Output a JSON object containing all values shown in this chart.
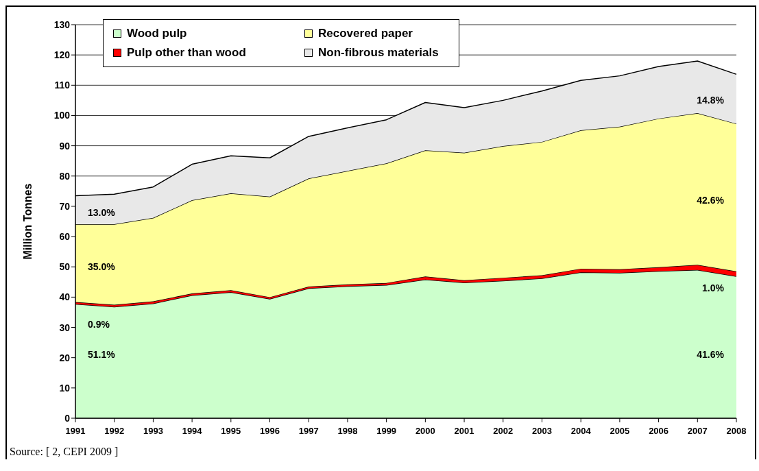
{
  "chart_data": {
    "type": "area",
    "stacked": true,
    "ylabel": "Million Tonnes",
    "categories": [
      "1991",
      "1992",
      "1993",
      "1994",
      "1995",
      "1996",
      "1997",
      "1998",
      "1999",
      "2000",
      "2001",
      "2002",
      "2003",
      "2004",
      "2005",
      "2006",
      "2007",
      "2008"
    ],
    "series": [
      {
        "name": "Wood pulp",
        "color": "#ccffcc",
        "values": [
          37.7,
          36.8,
          37.9,
          40.6,
          41.6,
          39.4,
          42.9,
          43.6,
          44.0,
          45.8,
          44.8,
          45.4,
          46.2,
          48.2,
          48.0,
          48.6,
          49.0,
          46.9
        ]
      },
      {
        "name": "Pulp other than wood",
        "color": "#ff0000",
        "values": [
          0.7,
          0.7,
          0.7,
          0.6,
          0.7,
          0.6,
          0.6,
          0.6,
          0.7,
          1.0,
          0.8,
          1.0,
          1.0,
          1.2,
          1.2,
          1.3,
          1.7,
          1.6
        ]
      },
      {
        "name": "Recovered paper",
        "color": "#ffff99",
        "values": [
          25.7,
          26.6,
          27.6,
          30.8,
          32.0,
          33.2,
          35.7,
          37.5,
          39.5,
          41.7,
          42.1,
          43.5,
          44.1,
          45.7,
          47.1,
          49.1,
          50.1,
          48.8
        ]
      },
      {
        "name": "Non-fibrous materials",
        "color": "#e8e8e8",
        "values": [
          9.4,
          9.9,
          10.2,
          11.9,
          12.4,
          12.8,
          13.9,
          14.2,
          14.4,
          15.8,
          14.9,
          15.1,
          16.8,
          16.5,
          16.8,
          17.2,
          17.2,
          16.3
        ]
      }
    ],
    "ylim": [
      0,
      130
    ],
    "yticks": [
      0,
      10,
      20,
      30,
      40,
      50,
      60,
      70,
      80,
      90,
      100,
      110,
      120,
      130
    ],
    "grid": "y",
    "legend": "top left",
    "annotations": [
      {
        "text": "13.0%",
        "x": "1991",
        "y": 68
      },
      {
        "text": "35.0%",
        "x": "1991",
        "y": 50
      },
      {
        "text": "0.9%",
        "x": "1991",
        "y": 31
      },
      {
        "text": "51.1%",
        "x": "1991",
        "y": 21
      },
      {
        "text": "14.8%",
        "x": "2008",
        "y": 105
      },
      {
        "text": "42.6%",
        "x": "2008",
        "y": 72
      },
      {
        "text": "1.0%",
        "x": "2008",
        "y": 43
      },
      {
        "text": "41.6%",
        "x": "2008",
        "y": 21
      },
      "Source: [ 2, CEPI 2009 ]"
    ]
  }
}
